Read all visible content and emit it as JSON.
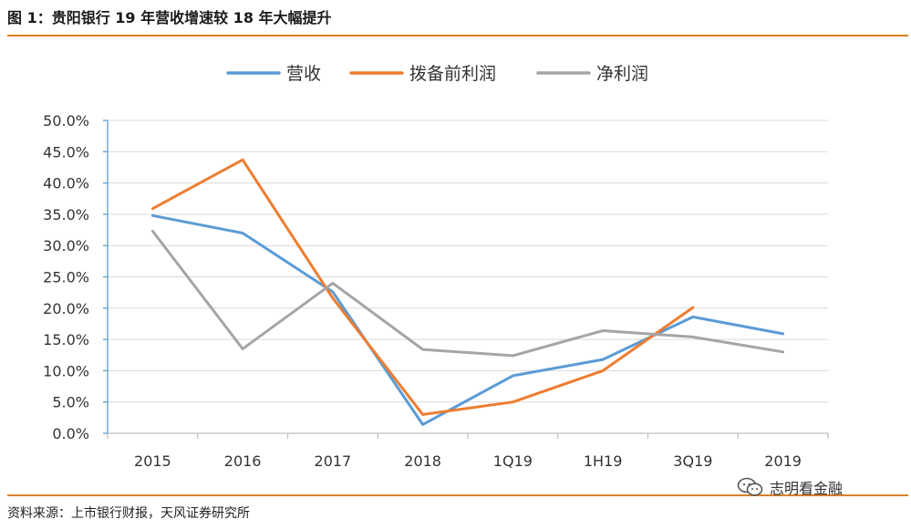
{
  "title": "图 1：贵阳银行 19 年营收增速较 18 年大幅提升",
  "source": "资料来源：上市银行财报，天风证券研究所",
  "watermark": "志明看金融",
  "colors": {
    "revenue": "#5b9bd5",
    "ppop": "#ed7d31",
    "net_profit": "#a5a5a5",
    "rule": "#d9822b",
    "grid": "#d9d9d9",
    "axis": "#5b9bd5"
  },
  "chart_data": {
    "type": "line",
    "title": "",
    "xlabel": "",
    "ylabel": "",
    "categories": [
      "2015",
      "2016",
      "2017",
      "2018",
      "1Q19",
      "1H19",
      "3Q19",
      "2019"
    ],
    "ylim": [
      0,
      50
    ],
    "yticks": [
      "0.0%",
      "5.0%",
      "10.0%",
      "15.0%",
      "20.0%",
      "25.0%",
      "30.0%",
      "35.0%",
      "40.0%",
      "45.0%",
      "50.0%"
    ],
    "grid": true,
    "legend_position": "top",
    "series": [
      {
        "name": "营收",
        "color": "#5b9bd5",
        "values": [
          34.8,
          32.0,
          22.6,
          1.4,
          9.2,
          11.8,
          18.6,
          15.9
        ]
      },
      {
        "name": "拨备前利润",
        "color": "#ed7d31",
        "values": [
          35.9,
          43.7,
          21.6,
          3.0,
          5.0,
          10.0,
          20.1,
          null
        ]
      },
      {
        "name": "净利润",
        "color": "#a5a5a5",
        "values": [
          32.3,
          13.5,
          24.0,
          13.4,
          12.4,
          16.4,
          15.4,
          13.0
        ]
      }
    ]
  }
}
